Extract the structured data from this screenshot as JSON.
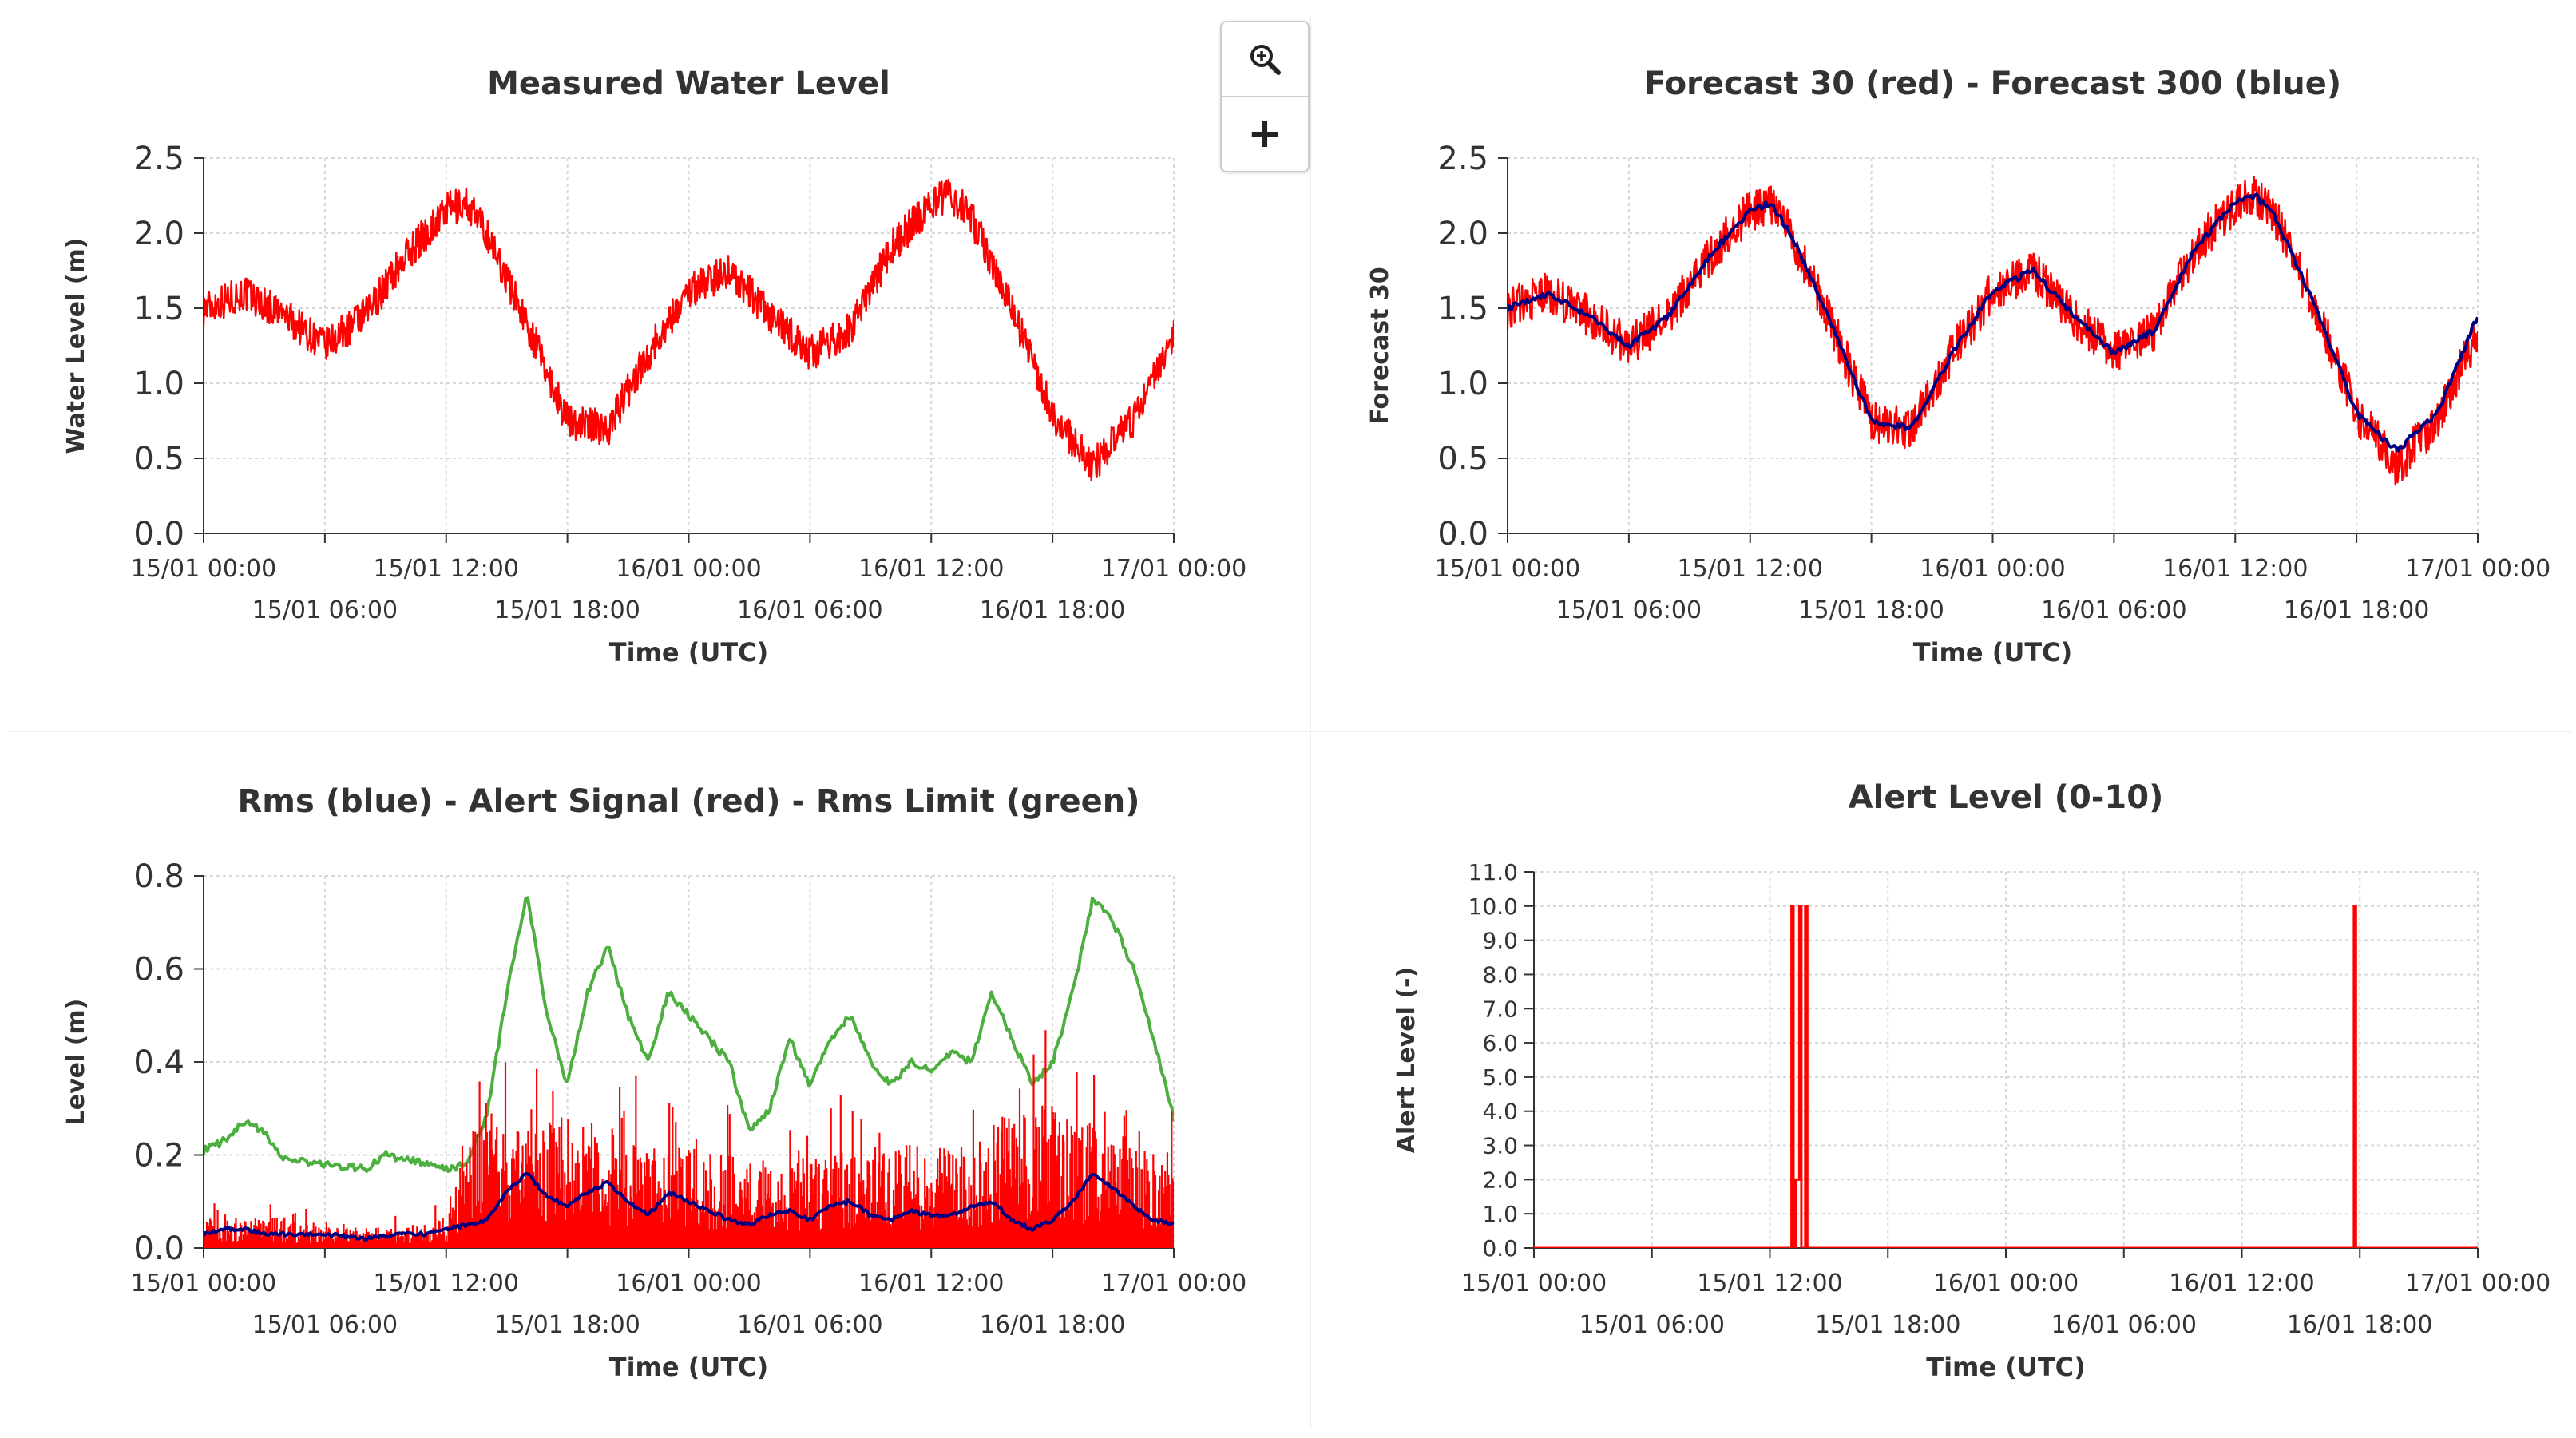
{
  "toolbar": {
    "zoom_icon": "magnifier-zoom-in-icon",
    "plus_icon": "plus-icon",
    "plus_label": "+"
  },
  "colors": {
    "red": "#ff0000",
    "blue": "#000080",
    "green": "#4caf3f",
    "grid": "#d8d8d8",
    "axis": "#333333"
  },
  "chart_data": [
    {
      "id": "measured",
      "type": "line",
      "title": "Measured Water Level",
      "ylabel": "Water Level (m)",
      "xlabel": "Time (UTC)",
      "ylim": [
        0,
        2.5
      ],
      "yticks": [
        "0.0",
        "0.5",
        "1.0",
        "1.5",
        "2.0",
        "2.5"
      ],
      "xticks_top": [
        "15/01 00:00",
        "15/01 12:00",
        "16/01 00:00",
        "16/01 12:00",
        "17/01 00:00"
      ],
      "xticks_bottom": [
        "15/01 06:00",
        "15/01 18:00",
        "16/01 06:00",
        "16/01 18:00"
      ],
      "x_hours": [
        0,
        6,
        12,
        18,
        24,
        30,
        36,
        42,
        48
      ],
      "series": [
        {
          "name": "Water Level",
          "color": "red",
          "x": [
            0,
            2,
            4,
            6,
            8,
            10,
            12,
            13,
            14,
            16,
            18,
            20,
            22,
            24,
            26,
            28,
            30,
            32,
            34,
            36,
            37,
            38,
            40,
            42,
            44,
            46,
            48
          ],
          "y": [
            1.5,
            1.6,
            1.45,
            1.25,
            1.45,
            1.85,
            2.15,
            2.2,
            2.0,
            1.4,
            0.75,
            0.7,
            1.2,
            1.62,
            1.75,
            1.45,
            1.2,
            1.35,
            1.9,
            2.2,
            2.25,
            2.1,
            1.5,
            0.8,
            0.45,
            0.75,
            1.35
          ],
          "noise": 0.12
        }
      ]
    },
    {
      "id": "forecast",
      "type": "line",
      "title": "Forecast 30 (red) - Forecast 300 (blue)",
      "ylabel": "Forecast 30",
      "xlabel": "Time (UTC)",
      "ylim": [
        0,
        2.5
      ],
      "yticks": [
        "0.0",
        "0.5",
        "1.0",
        "1.5",
        "2.0",
        "2.5"
      ],
      "xticks_top": [
        "15/01 00:00",
        "15/01 12:00",
        "16/01 00:00",
        "16/01 12:00",
        "17/01 00:00"
      ],
      "xticks_bottom": [
        "15/01 06:00",
        "15/01 18:00",
        "16/01 06:00",
        "16/01 18:00"
      ],
      "x_hours": [
        0,
        6,
        12,
        18,
        24,
        30,
        36,
        42,
        48
      ],
      "series": [
        {
          "name": "Forecast 30",
          "color": "red",
          "x": [
            0,
            2,
            4,
            6,
            8,
            10,
            12,
            13,
            14,
            16,
            18,
            20,
            22,
            24,
            26,
            28,
            30,
            32,
            34,
            36,
            37,
            38,
            40,
            42,
            44,
            46,
            48
          ],
          "y": [
            1.5,
            1.6,
            1.45,
            1.25,
            1.45,
            1.85,
            2.15,
            2.2,
            2.0,
            1.4,
            0.75,
            0.7,
            1.2,
            1.62,
            1.75,
            1.45,
            1.2,
            1.35,
            1.9,
            2.2,
            2.25,
            2.1,
            1.5,
            0.8,
            0.45,
            0.75,
            1.35
          ],
          "noise": 0.14
        },
        {
          "name": "Forecast 300",
          "color": "blue",
          "x": [
            0,
            2,
            4,
            6,
            8,
            10,
            12,
            13,
            14,
            16,
            18,
            20,
            22,
            24,
            26,
            28,
            30,
            32,
            34,
            36,
            37,
            38,
            40,
            42,
            44,
            46,
            48
          ],
          "y": [
            1.5,
            1.6,
            1.45,
            1.25,
            1.45,
            1.85,
            2.15,
            2.2,
            2.0,
            1.4,
            0.75,
            0.7,
            1.2,
            1.62,
            1.75,
            1.45,
            1.2,
            1.35,
            1.9,
            2.2,
            2.25,
            2.1,
            1.5,
            0.8,
            0.55,
            0.8,
            1.45
          ],
          "noise": 0.02
        }
      ]
    },
    {
      "id": "rms",
      "type": "line",
      "title": "Rms (blue) - Alert Signal (red) - Rms Limit (green)",
      "ylabel": "Level (m)",
      "xlabel": "Time (UTC)",
      "ylim": [
        0,
        0.8
      ],
      "yticks": [
        "0.0",
        "0.2",
        "0.4",
        "0.6",
        "0.8"
      ],
      "xticks_top": [
        "15/01 00:00",
        "15/01 12:00",
        "16/01 00:00",
        "16/01 12:00",
        "17/01 00:00"
      ],
      "xticks_bottom": [
        "15/01 06:00",
        "15/01 18:00",
        "16/01 06:00",
        "16/01 18:00"
      ],
      "x_hours": [
        0,
        6,
        12,
        18,
        24,
        30,
        36,
        42,
        48
      ],
      "series": [
        {
          "name": "Rms Limit",
          "color": "green",
          "x": [
            0,
            1,
            2,
            3,
            4,
            6,
            8,
            9,
            10,
            11,
            12,
            13,
            14,
            15,
            16,
            17,
            18,
            19,
            20,
            21,
            22,
            23,
            24,
            25,
            26,
            27,
            28,
            29,
            30,
            31,
            32,
            33,
            34,
            35,
            36,
            37,
            38,
            39,
            40,
            41,
            42,
            43,
            44,
            45,
            46,
            47,
            48
          ],
          "y": [
            0.21,
            0.23,
            0.27,
            0.25,
            0.19,
            0.18,
            0.17,
            0.2,
            0.19,
            0.18,
            0.17,
            0.18,
            0.28,
            0.55,
            0.76,
            0.5,
            0.35,
            0.55,
            0.65,
            0.5,
            0.4,
            0.55,
            0.5,
            0.45,
            0.4,
            0.25,
            0.3,
            0.45,
            0.35,
            0.45,
            0.5,
            0.4,
            0.35,
            0.4,
            0.38,
            0.42,
            0.4,
            0.55,
            0.45,
            0.35,
            0.4,
            0.55,
            0.75,
            0.7,
            0.6,
            0.45,
            0.28
          ],
          "noise": 0.008
        },
        {
          "name": "Alert Signal",
          "color": "red",
          "x": [
            0,
            2,
            4,
            6,
            8,
            10,
            12,
            13,
            14,
            16,
            18,
            20,
            22,
            24,
            26,
            28,
            30,
            32,
            34,
            36,
            38,
            40,
            42,
            44,
            46,
            48
          ],
          "y": [
            0.03,
            0.03,
            0.03,
            0.02,
            0.02,
            0.02,
            0.03,
            0.1,
            0.15,
            0.12,
            0.13,
            0.12,
            0.1,
            0.1,
            0.09,
            0.08,
            0.09,
            0.1,
            0.1,
            0.1,
            0.1,
            0.14,
            0.14,
            0.12,
            0.1,
            0.1
          ],
          "spikes": true,
          "noise": 0.0
        },
        {
          "name": "Rms",
          "color": "blue",
          "x": [
            0,
            1,
            2,
            3,
            4,
            6,
            8,
            10,
            11,
            12,
            13,
            14,
            15,
            16,
            17,
            18,
            19,
            20,
            21,
            22,
            23,
            24,
            25,
            26,
            27,
            28,
            29,
            30,
            31,
            32,
            33,
            34,
            35,
            36,
            37,
            38,
            39,
            40,
            41,
            42,
            43,
            44,
            45,
            46,
            47,
            48
          ],
          "y": [
            0.03,
            0.04,
            0.04,
            0.03,
            0.03,
            0.03,
            0.02,
            0.03,
            0.03,
            0.04,
            0.05,
            0.06,
            0.12,
            0.16,
            0.11,
            0.09,
            0.12,
            0.14,
            0.1,
            0.07,
            0.12,
            0.1,
            0.08,
            0.06,
            0.05,
            0.07,
            0.08,
            0.06,
            0.09,
            0.1,
            0.07,
            0.06,
            0.08,
            0.07,
            0.07,
            0.09,
            0.1,
            0.06,
            0.04,
            0.06,
            0.1,
            0.16,
            0.13,
            0.09,
            0.06,
            0.05
          ],
          "noise": 0.004
        }
      ]
    },
    {
      "id": "alert",
      "type": "line",
      "title": "Alert Level (0-10)",
      "ylabel": "Alert Level (-)",
      "xlabel": "Time (UTC)",
      "ylim": [
        0,
        11
      ],
      "yticks": [
        "0.0",
        "1.0",
        "2.0",
        "3.0",
        "4.0",
        "5.0",
        "6.0",
        "7.0",
        "8.0",
        "9.0",
        "10.0",
        "11.0"
      ],
      "xticks_top": [
        "15/01 00:00",
        "15/01 12:00",
        "16/01 00:00",
        "16/01 12:00",
        "17/01 00:00"
      ],
      "xticks_bottom": [
        "15/01 06:00",
        "15/01 18:00",
        "16/01 06:00",
        "16/01 18:00"
      ],
      "x_hours": [
        0,
        6,
        12,
        18,
        24,
        30,
        36,
        42,
        48
      ],
      "series": [
        {
          "name": "Alert Level",
          "color": "red",
          "x": [
            0,
            13.1,
            13.1,
            13.2,
            13.2,
            13.3,
            13.3,
            13.5,
            13.5,
            13.6,
            13.6,
            13.8,
            13.8,
            13.9,
            13.9,
            41.7,
            41.7,
            41.8,
            41.8,
            48
          ],
          "y": [
            0,
            0,
            10,
            10,
            0,
            0,
            2,
            2,
            10,
            10,
            0,
            0,
            10,
            10,
            0,
            0,
            10,
            10,
            0,
            0
          ],
          "noise": 0
        }
      ]
    }
  ]
}
